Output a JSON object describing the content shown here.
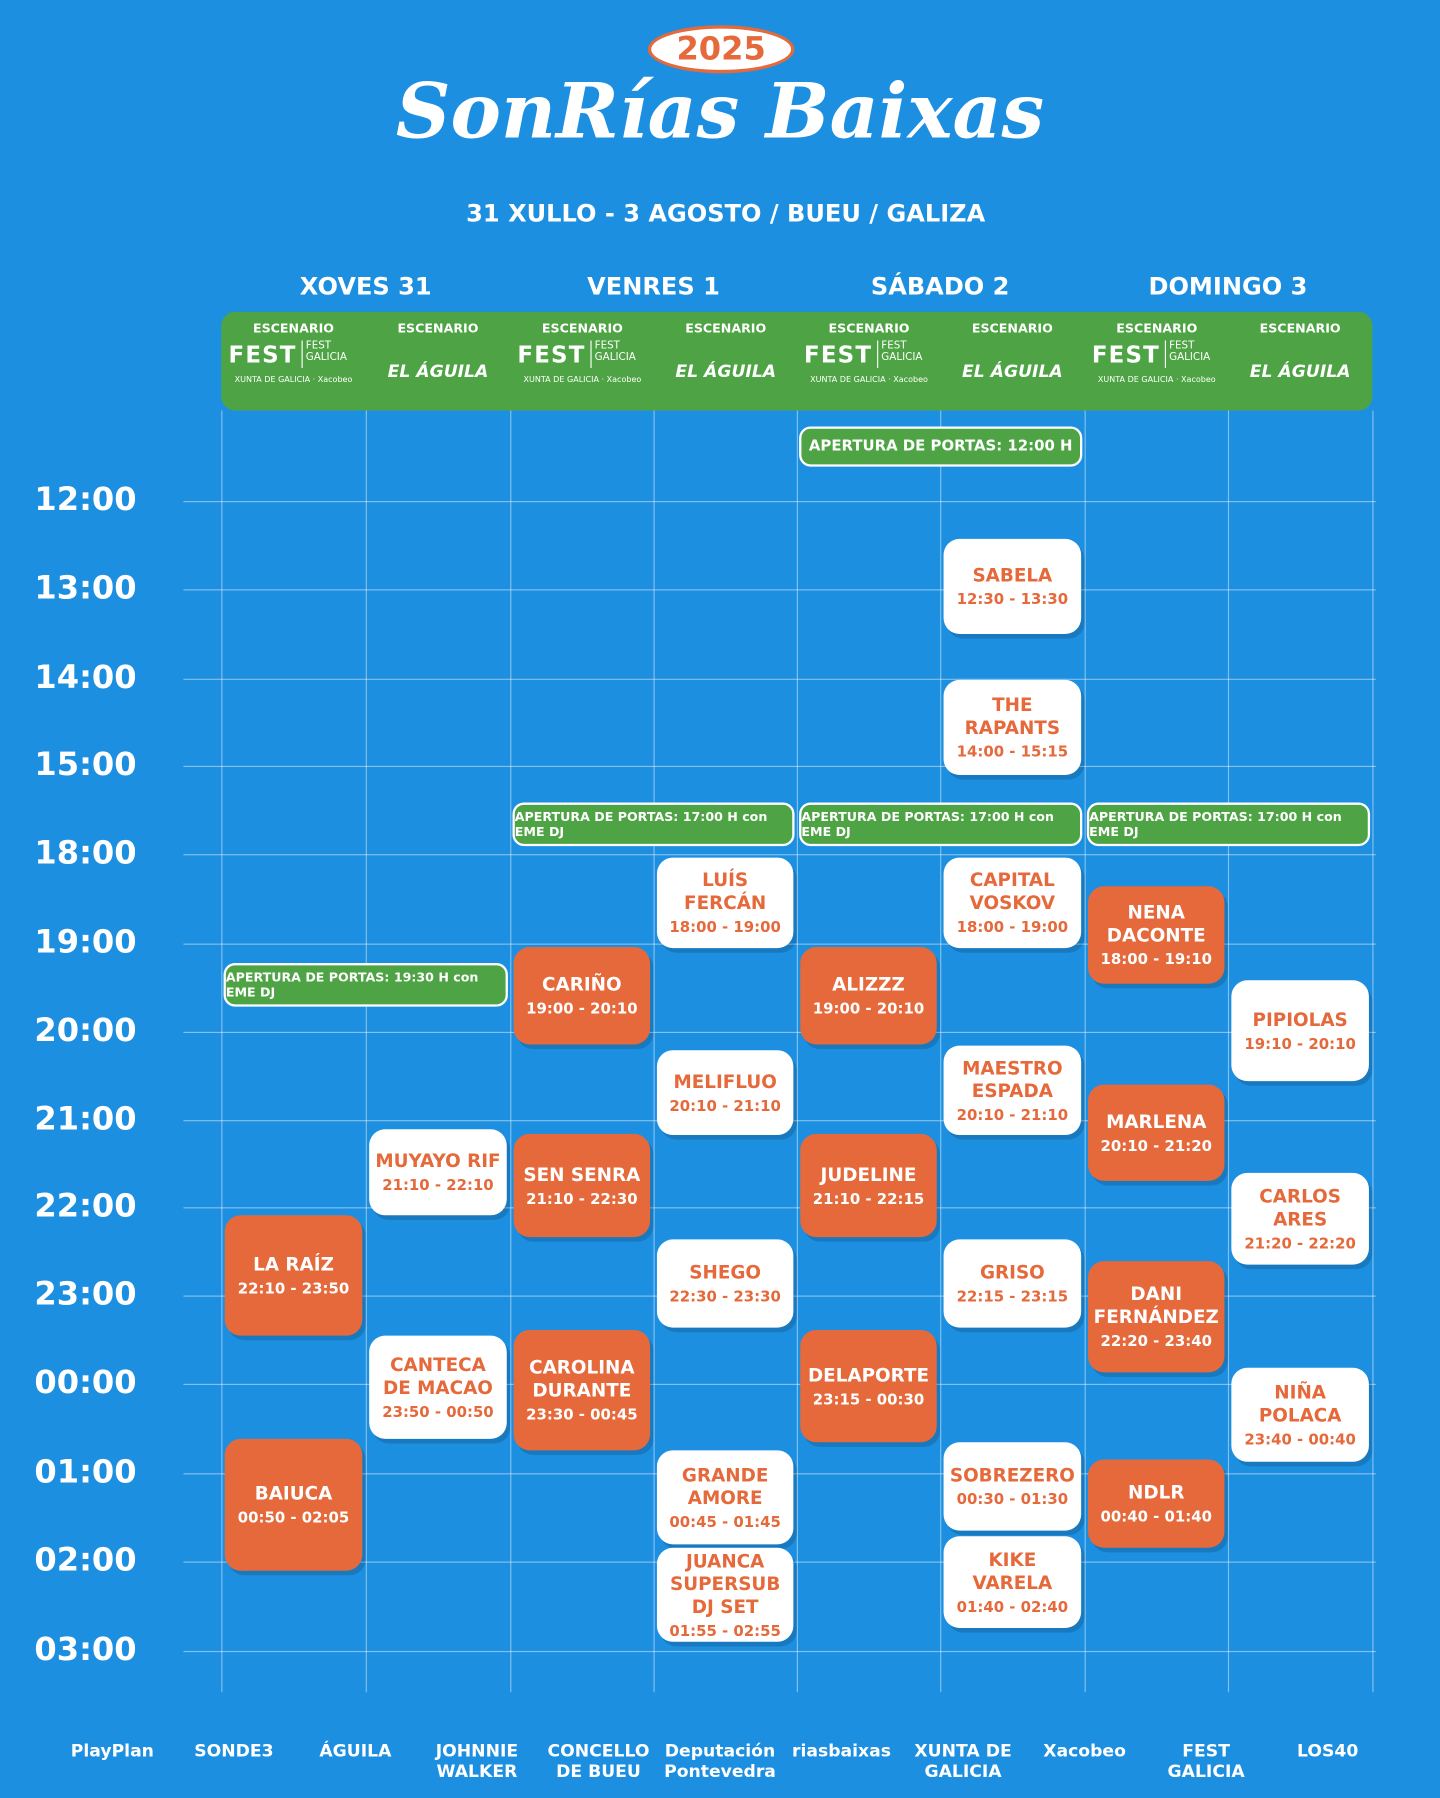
{
  "header": {
    "year": "2025",
    "title": "SonRías Baixas",
    "subtitle": "31 XULLO - 3 AGOSTO / BUEU / GALIZA"
  },
  "days": [
    "XOVES 31",
    "VENRES 1",
    "SÁBADO 2",
    "DOMINGO 3"
  ],
  "stages": [
    {
      "label": "ESCENARIO",
      "logo": "FEST",
      "sub": "FEST GALICIA",
      "partners": "XUNTA DE GALICIA · Xacobeo"
    },
    {
      "label": "ESCENARIO",
      "logo": "EL ÁGUILA"
    }
  ],
  "times": [
    "12:00",
    "13:00",
    "14:00",
    "15:00",
    "18:00",
    "19:00",
    "20:00",
    "21:00",
    "22:00",
    "23:00",
    "00:00",
    "01:00",
    "02:00",
    "03:00"
  ],
  "doors": [
    "APERTURA DE PORTAS: 12:00 H",
    "APERTURA DE PORTAS: 17:00 H con EME DJ",
    "APERTURA DE PORTAS: 17:00 H con EME DJ",
    "APERTURA DE PORTAS: 17:00 H con EME DJ",
    "APERTURA DE PORTAS: 19:30 H con EME DJ"
  ],
  "events": [
    {
      "name": "SABELA",
      "time": "12:30 - 13:30"
    },
    {
      "name": "THE RAPANTS",
      "time": "14:00 - 15:15"
    },
    {
      "name": "LUÍS FERCÁN",
      "time": "18:00 - 19:00"
    },
    {
      "name": "CAPITAL VOSKOV",
      "time": "18:00 - 19:00"
    },
    {
      "name": "NENA DACONTE",
      "time": "18:00 - 19:10"
    },
    {
      "name": "CARIÑO",
      "time": "19:00 - 20:10"
    },
    {
      "name": "ALIZZZ",
      "time": "19:00 - 20:10"
    },
    {
      "name": "PIPIOLAS",
      "time": "19:10 - 20:10"
    },
    {
      "name": "MELIFLUO",
      "time": "20:10 - 21:10"
    },
    {
      "name": "MAESTRO ESPADA",
      "time": "20:10 - 21:10"
    },
    {
      "name": "MARLENA",
      "time": "20:10 - 21:20"
    },
    {
      "name": "MUYAYO RIF",
      "time": "21:10 - 22:10"
    },
    {
      "name": "SEN SENRA",
      "time": "21:10 - 22:30"
    },
    {
      "name": "JUDELINE",
      "time": "21:10 - 22:15"
    },
    {
      "name": "CARLOS ARES",
      "time": "21:20 - 22:20"
    },
    {
      "name": "LA RAÍZ",
      "time": "22:10 - 23:50"
    },
    {
      "name": "SHEGO",
      "time": "22:30 - 23:30"
    },
    {
      "name": "GRISO",
      "time": "22:15 - 23:15"
    },
    {
      "name": "DANI FERNÁNDEZ",
      "time": "22:20 - 23:40"
    },
    {
      "name": "CANTECA DE MACAO",
      "time": "23:50 - 00:50"
    },
    {
      "name": "CAROLINA DURANTE",
      "time": "23:30 - 00:45"
    },
    {
      "name": "DELAPORTE",
      "time": "23:15 - 00:30"
    },
    {
      "name": "NIÑA POLACA",
      "time": "23:40 - 00:40"
    },
    {
      "name": "BAIUCA",
      "time": "00:50 - 02:05"
    },
    {
      "name": "GRANDE AMORE",
      "time": "00:45 - 01:45"
    },
    {
      "name": "SOBREZERO",
      "time": "00:30 - 01:30"
    },
    {
      "name": "NDLR",
      "time": "00:40 - 01:40"
    },
    {
      "name": "JUANCA SUPERSUB DJ SET",
      "time": "01:55 - 02:55"
    },
    {
      "name": "KIKE VARELA",
      "time": "01:40 - 02:40"
    }
  ],
  "sponsors": [
    "PlayPlan",
    "SONDE3",
    "ÁGUILA",
    "JOHNNIE WALKER",
    "CONCELLO DE BUEU",
    "Deputación Pontevedra",
    "riasbaixas",
    "XUNTA DE GALICIA",
    "Xacobeo",
    "FEST GALICIA",
    "LOS40"
  ]
}
